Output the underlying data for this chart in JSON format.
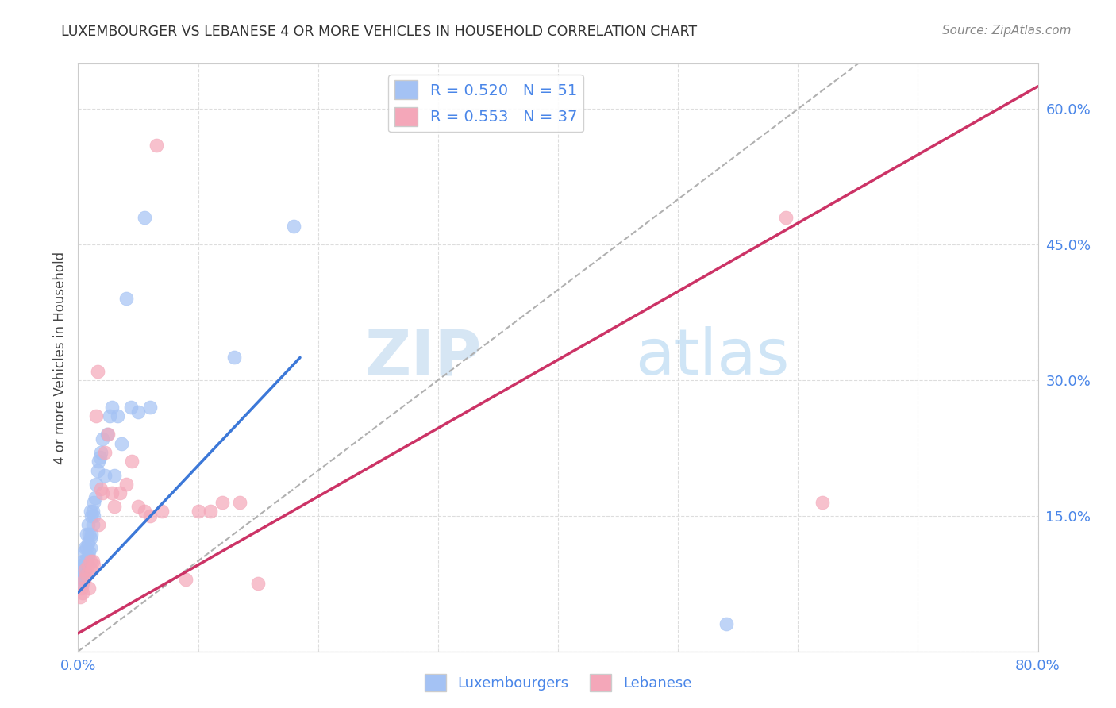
{
  "title": "LUXEMBOURGER VS LEBANESE 4 OR MORE VEHICLES IN HOUSEHOLD CORRELATION CHART",
  "source": "Source: ZipAtlas.com",
  "ylabel": "4 or more Vehicles in Household",
  "xmin": 0.0,
  "xmax": 0.8,
  "ymin": 0.0,
  "ymax": 0.65,
  "xticks": [
    0.0,
    0.1,
    0.2,
    0.3,
    0.4,
    0.5,
    0.6,
    0.7,
    0.8
  ],
  "xticklabels": [
    "0.0%",
    "",
    "",
    "",
    "",
    "",
    "",
    "",
    "80.0%"
  ],
  "yticks_right": [
    0.0,
    0.15,
    0.3,
    0.45,
    0.6
  ],
  "yticklabels_right": [
    "",
    "15.0%",
    "30.0%",
    "45.0%",
    "60.0%"
  ],
  "blue_R": 0.52,
  "blue_N": 51,
  "pink_R": 0.553,
  "pink_N": 37,
  "blue_color": "#a4c2f4",
  "pink_color": "#f4a7b9",
  "blue_line_color": "#3c78d8",
  "pink_line_color": "#cc3366",
  "ref_line_color": "#b0b0b0",
  "grid_color": "#dddddd",
  "title_color": "#333333",
  "axis_label_color": "#4a86e8",
  "watermark_color": "#cfe2f3",
  "blue_scatter_x": [
    0.002,
    0.003,
    0.003,
    0.004,
    0.004,
    0.004,
    0.005,
    0.005,
    0.005,
    0.006,
    0.006,
    0.006,
    0.007,
    0.007,
    0.007,
    0.008,
    0.008,
    0.008,
    0.009,
    0.009,
    0.01,
    0.01,
    0.01,
    0.011,
    0.011,
    0.012,
    0.012,
    0.013,
    0.013,
    0.014,
    0.015,
    0.016,
    0.017,
    0.018,
    0.019,
    0.02,
    0.022,
    0.024,
    0.026,
    0.028,
    0.03,
    0.033,
    0.036,
    0.04,
    0.044,
    0.05,
    0.055,
    0.06,
    0.13,
    0.18,
    0.54
  ],
  "blue_scatter_y": [
    0.08,
    0.085,
    0.095,
    0.075,
    0.09,
    0.1,
    0.085,
    0.095,
    0.11,
    0.09,
    0.1,
    0.115,
    0.1,
    0.115,
    0.13,
    0.105,
    0.12,
    0.14,
    0.11,
    0.13,
    0.115,
    0.125,
    0.155,
    0.13,
    0.15,
    0.14,
    0.155,
    0.15,
    0.165,
    0.17,
    0.185,
    0.2,
    0.21,
    0.215,
    0.22,
    0.235,
    0.195,
    0.24,
    0.26,
    0.27,
    0.195,
    0.26,
    0.23,
    0.39,
    0.27,
    0.265,
    0.48,
    0.27,
    0.325,
    0.47,
    0.03
  ],
  "pink_scatter_x": [
    0.002,
    0.003,
    0.004,
    0.005,
    0.006,
    0.007,
    0.008,
    0.009,
    0.01,
    0.011,
    0.012,
    0.013,
    0.015,
    0.016,
    0.017,
    0.019,
    0.02,
    0.022,
    0.025,
    0.028,
    0.03,
    0.035,
    0.04,
    0.045,
    0.05,
    0.055,
    0.06,
    0.065,
    0.07,
    0.09,
    0.1,
    0.11,
    0.12,
    0.135,
    0.15,
    0.59,
    0.62
  ],
  "pink_scatter_y": [
    0.06,
    0.07,
    0.065,
    0.08,
    0.09,
    0.085,
    0.095,
    0.07,
    0.1,
    0.09,
    0.1,
    0.095,
    0.26,
    0.31,
    0.14,
    0.18,
    0.175,
    0.22,
    0.24,
    0.175,
    0.16,
    0.175,
    0.185,
    0.21,
    0.16,
    0.155,
    0.15,
    0.56,
    0.155,
    0.08,
    0.155,
    0.155,
    0.165,
    0.165,
    0.075,
    0.48,
    0.165
  ],
  "blue_line_x": [
    0.0,
    0.185
  ],
  "blue_line_y": [
    0.065,
    0.325
  ],
  "pink_line_x": [
    0.0,
    0.8
  ],
  "pink_line_y": [
    0.02,
    0.625
  ]
}
